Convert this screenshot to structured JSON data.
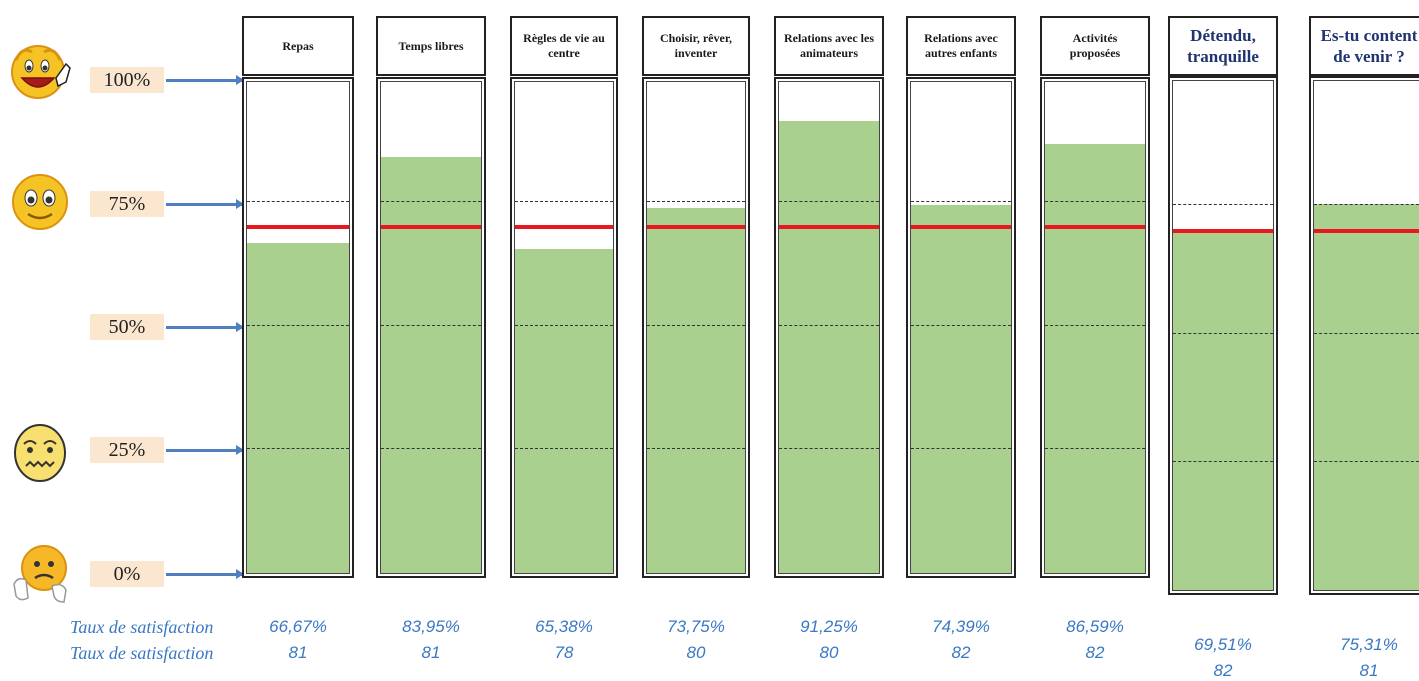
{
  "chart_data": {
    "type": "bar",
    "categories": [
      "Repas",
      "Temps libres",
      "Règles de vie au centre",
      "Choisir, rêver, inventer",
      "Relations avec les animateurs",
      "Relations avec autres enfants",
      "Activités proposées",
      "Détendu, tranquille",
      "Es-tu content de venir ?"
    ],
    "values": [
      66.67,
      83.95,
      65.38,
      73.75,
      91.25,
      74.39,
      86.59,
      69.51,
      75.31
    ],
    "value_labels": [
      "66,67%",
      "83,95%",
      "65,38%",
      "73,75%",
      "91,25%",
      "74,39%",
      "86,59%",
      "69,51%",
      "75,31%"
    ],
    "counts": [
      "81",
      "81",
      "78",
      "80",
      "80",
      "82",
      "82",
      "82",
      "81"
    ],
    "reference_line": 70,
    "y_ticks": [
      "0%",
      "25%",
      "50%",
      "75%",
      "100%"
    ],
    "ylim": [
      0,
      100
    ],
    "row_label_1": "Taux de satisfaction",
    "row_label_2": "Taux de satisfaction",
    "grid": true,
    "colors": {
      "fill": "#a9d08e",
      "reference": "#e8191e",
      "arrow": "#4f7fbf",
      "label_bg": "#fbe7cf",
      "footer_text": "#3a78c4"
    }
  },
  "icons": [
    "very-happy-face-icon",
    "happy-face-icon",
    "worried-face-icon",
    "sad-face-icon"
  ]
}
